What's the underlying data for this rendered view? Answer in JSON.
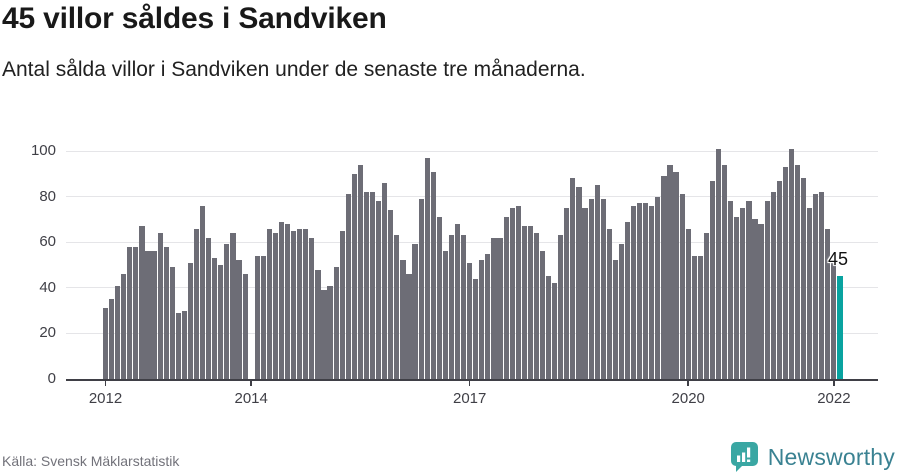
{
  "header": {
    "title": "45 villor såldes i Sandviken",
    "subtitle": "Antal sålda villor i Sandviken under de senaste tre månaderna."
  },
  "chart_data": {
    "type": "bar",
    "title": "45 villor såldes i Sandviken",
    "subtitle": "Antal sålda villor i Sandviken under de senaste tre månaderna.",
    "frequency": "monthly",
    "start": "2012-01",
    "end": "2022-02",
    "values": [
      31,
      35,
      41,
      46,
      58,
      58,
      67,
      56,
      56,
      64,
      58,
      49,
      29,
      30,
      51,
      66,
      76,
      62,
      53,
      50,
      59,
      64,
      52,
      46,
      null,
      54,
      54,
      66,
      64,
      69,
      68,
      65,
      66,
      66,
      62,
      48,
      39,
      41,
      49,
      65,
      81,
      90,
      94,
      82,
      82,
      78,
      86,
      74,
      63,
      52,
      46,
      59,
      79,
      97,
      91,
      71,
      56,
      63,
      68,
      63,
      51,
      44,
      52,
      55,
      62,
      62,
      71,
      75,
      76,
      67,
      67,
      64,
      56,
      45,
      42,
      63,
      75,
      88,
      84,
      75,
      79,
      85,
      79,
      66,
      52,
      59,
      69,
      76,
      77,
      77,
      76,
      80,
      89,
      94,
      91,
      81,
      66,
      54,
      54,
      64,
      87,
      101,
      94,
      78,
      71,
      75,
      78,
      70,
      68,
      78,
      82,
      87,
      93,
      101,
      94,
      88,
      75,
      81,
      82,
      66,
      51,
      45
    ],
    "highlight": {
      "index": 121,
      "label": "45"
    },
    "y_ticks": [
      0,
      20,
      40,
      60,
      80,
      100
    ],
    "ylim": [
      0,
      100
    ],
    "x_ticks": [
      {
        "label": "2012",
        "month": 0
      },
      {
        "label": "2014",
        "month": 24
      },
      {
        "label": "2017",
        "month": 60
      },
      {
        "label": "2020",
        "month": 96
      },
      {
        "label": "2022",
        "month": 120
      }
    ],
    "grid": "horizontal",
    "legend": "none",
    "colors": {
      "bar": "#6d6d76",
      "highlight": "#09a3a0"
    }
  },
  "annotation": {
    "value_label": "45"
  },
  "footer": {
    "source": "Källa: Svensk Mäklarstatistik",
    "logo_text": "Newsworthy"
  },
  "colors": {
    "bar": "#6d6d76",
    "highlight_teal": "#09a3a0",
    "axis": "#3f3f46",
    "grid": "#e5e5e8",
    "logo_icon": "#3aa7a3",
    "logo_text": "#3a8292"
  }
}
